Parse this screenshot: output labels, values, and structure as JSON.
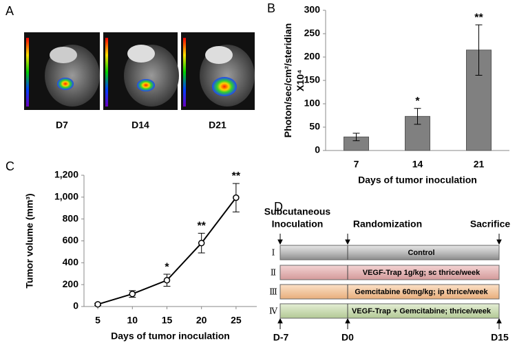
{
  "panel_labels": [
    "A",
    "B",
    "C",
    "D"
  ],
  "images": {
    "labels": [
      "D7",
      "D14",
      "D21"
    ]
  },
  "chart_data": [
    {
      "type": "bar",
      "categories": [
        "7",
        "14",
        "21"
      ],
      "values": [
        29,
        73,
        215
      ],
      "errors": [
        8,
        17,
        54
      ],
      "significance": [
        null,
        "*",
        "**"
      ],
      "color": "#808080",
      "ylim": [
        0,
        300
      ],
      "yticks": [
        0,
        50,
        100,
        150,
        200,
        250,
        300
      ],
      "y_label": [
        "Photon/sec/cm²/steridian",
        "X10⁴"
      ],
      "x_label": "Days of tumor inoculation"
    },
    {
      "type": "line",
      "x": [
        5,
        10,
        15,
        20,
        25
      ],
      "values": [
        20,
        115,
        240,
        580,
        995
      ],
      "errors": [
        10,
        30,
        55,
        90,
        130
      ],
      "significance": [
        null,
        null,
        "*",
        "**",
        "**"
      ],
      "color": "#000000",
      "xlim": [
        3,
        28
      ],
      "xticks": [
        5,
        10,
        15,
        20,
        25
      ],
      "ylim": [
        0,
        1200
      ],
      "yticks": [
        0,
        200,
        400,
        600,
        800,
        {
          "value": 1000,
          "label": "1,000"
        },
        {
          "value": 1200,
          "label": "1,200"
        }
      ],
      "y_label": "Tumor  volume (mm³)",
      "x_label": "Days of tumor inoculation"
    }
  ],
  "timeline": {
    "events": [
      "Subcutaneous",
      "Inoculation",
      "Randomization",
      "Sacrifice"
    ],
    "groups": [
      {
        "numeral": "Ⅰ",
        "label": "Control"
      },
      {
        "numeral": "Ⅱ",
        "label": "VEGF-Trap  1g/kg; sc thrice/week"
      },
      {
        "numeral": "Ⅲ",
        "label": "Gemcitabine  60mg/kg; ip thrice/week"
      },
      {
        "numeral": "Ⅳ",
        "label": "VEGF-Trap + Gemcitabine; thrice/week"
      }
    ],
    "days": [
      "D-7",
      "D0",
      "D15"
    ]
  }
}
